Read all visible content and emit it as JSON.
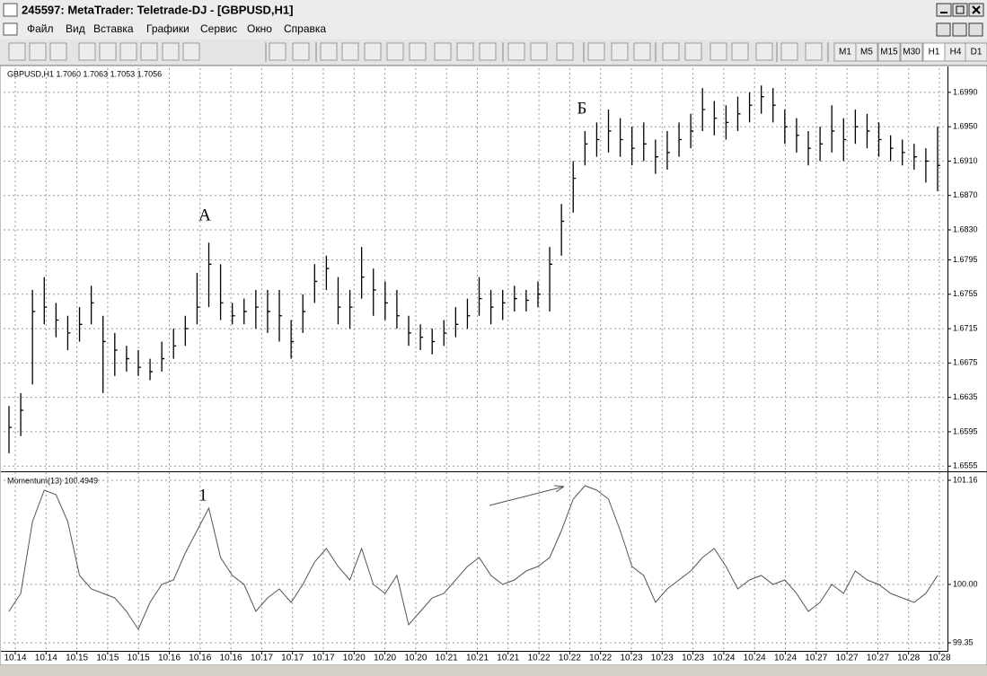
{
  "window": {
    "title": "245597: MetaTrader: Teletrade-DJ - [GBPUSD,H1]"
  },
  "menu": [
    "Файл",
    "Вид",
    "Вставка",
    "Графики",
    "Сервис",
    "Окно",
    "Справка"
  ],
  "timeframes": [
    "M1",
    "M5",
    "M15",
    "M30",
    "H1",
    "H4",
    "D1"
  ],
  "time_axis": {
    "labels": [
      "10.14",
      "10.14",
      "10.15",
      "10.15",
      "10.15",
      "10.16",
      "10.16",
      "10.16",
      "10.17",
      "10.17",
      "10.17",
      "10.20",
      "10.20",
      "10.20",
      "10.21",
      "10.21",
      "10.21",
      "10.22",
      "10.22",
      "10.22",
      "10.23",
      "10.23",
      "10.23",
      "10.24",
      "10.24",
      "10.24",
      "10.27",
      "10.27",
      "10.27",
      "10.28",
      "10.28"
    ]
  },
  "chart_data": [
    {
      "type": "ohlc",
      "title": "GBPUSD,H1  1.7060 1.7063 1.7053 1.7056",
      "series": [
        {
          "name": "high",
          "color": "#000000",
          "values": [
            1.6625,
            1.664,
            1.676,
            1.6775,
            1.6745,
            1.673,
            1.674,
            1.6765,
            1.673,
            1.671,
            1.6695,
            1.669,
            1.668,
            1.67,
            1.6715,
            1.673,
            1.678,
            1.6815,
            1.679,
            1.6745,
            1.675,
            1.676,
            1.676,
            1.676,
            1.6725,
            1.6755,
            1.679,
            1.68,
            1.6775,
            1.676,
            1.681,
            1.6785,
            1.677,
            1.676,
            1.673,
            1.672,
            1.6715,
            1.6725,
            1.674,
            1.675,
            1.6775,
            1.676,
            1.676,
            1.6765,
            1.676,
            1.677,
            1.681,
            1.686,
            1.691,
            1.6945,
            1.6955,
            1.697,
            1.696,
            1.695,
            1.6955,
            1.6935,
            1.6945,
            1.6955,
            1.6965,
            1.6995,
            1.698,
            1.6975,
            1.6985,
            1.699,
            1.6998,
            1.6995,
            1.697,
            1.696,
            1.6945,
            1.695,
            1.6975,
            1.696,
            1.697,
            1.6965,
            1.6955,
            1.694,
            1.6935,
            1.693,
            1.6925,
            1.695
          ]
        },
        {
          "name": "low",
          "color": "#000000",
          "values": [
            1.657,
            1.659,
            1.665,
            1.672,
            1.6705,
            1.669,
            1.67,
            1.672,
            1.664,
            1.666,
            1.6665,
            1.666,
            1.6655,
            1.6665,
            1.668,
            1.6695,
            1.672,
            1.674,
            1.6725,
            1.672,
            1.672,
            1.6715,
            1.671,
            1.67,
            1.668,
            1.671,
            1.6745,
            1.676,
            1.672,
            1.6715,
            1.675,
            1.673,
            1.6725,
            1.6715,
            1.6695,
            1.669,
            1.6685,
            1.6695,
            1.6705,
            1.6715,
            1.673,
            1.672,
            1.6725,
            1.6735,
            1.6735,
            1.674,
            1.6735,
            1.68,
            1.685,
            1.6905,
            1.6915,
            1.692,
            1.6915,
            1.6905,
            1.691,
            1.6895,
            1.69,
            1.6915,
            1.6925,
            1.6945,
            1.694,
            1.6935,
            1.6945,
            1.6955,
            1.6965,
            1.6955,
            1.693,
            1.692,
            1.6905,
            1.691,
            1.692,
            1.691,
            1.693,
            1.6925,
            1.6915,
            1.691,
            1.6905,
            1.69,
            1.6885,
            1.6875
          ]
        },
        {
          "name": "close",
          "color": "#000000",
          "values": [
            1.66,
            1.662,
            1.6735,
            1.674,
            1.6725,
            1.671,
            1.672,
            1.6745,
            1.67,
            1.669,
            1.668,
            1.667,
            1.6665,
            1.668,
            1.6695,
            1.6715,
            1.674,
            1.679,
            1.6745,
            1.673,
            1.6735,
            1.674,
            1.6735,
            1.673,
            1.67,
            1.6735,
            1.677,
            1.6785,
            1.674,
            1.674,
            1.6775,
            1.676,
            1.6745,
            1.673,
            1.671,
            1.6705,
            1.67,
            1.671,
            1.672,
            1.673,
            1.675,
            1.674,
            1.6745,
            1.675,
            1.6748,
            1.6755,
            1.679,
            1.684,
            1.689,
            1.693,
            1.6935,
            1.6945,
            1.6935,
            1.6925,
            1.693,
            1.6915,
            1.692,
            1.6935,
            1.6945,
            1.697,
            1.696,
            1.6955,
            1.6965,
            1.6975,
            1.6985,
            1.6975,
            1.695,
            1.694,
            1.6925,
            1.693,
            1.6945,
            1.6935,
            1.695,
            1.6945,
            1.6935,
            1.6925,
            1.692,
            1.6915,
            1.691,
            1.6905
          ]
        }
      ],
      "ylim": [
        1.655,
        1.7016
      ],
      "yticks": [
        1.6555,
        1.6595,
        1.6635,
        1.6675,
        1.6715,
        1.6755,
        1.6795,
        {
          "value": 1.683,
          "label": "1.6830"
        },
        {
          "value": 1.687,
          "label": "1.6870"
        },
        {
          "value": 1.691,
          "label": "1.6910"
        },
        {
          "value": 1.695,
          "label": "1.6950"
        },
        {
          "value": 1.699,
          "label": "1.6990"
        }
      ],
      "grid": true,
      "annotations": [
        "А",
        "Б"
      ]
    },
    {
      "type": "line",
      "title": "Momentum(13)  100.4949",
      "series": [
        {
          "name": "Momentum(13)",
          "color": "#555555",
          "values": [
            99.7,
            99.9,
            100.7,
            101.05,
            101.0,
            100.7,
            100.1,
            99.95,
            99.9,
            99.85,
            99.7,
            99.5,
            99.8,
            100.0,
            100.05,
            100.35,
            100.6,
            100.85,
            100.3,
            100.1,
            100.0,
            99.7,
            99.85,
            99.95,
            99.8,
            100.0,
            100.25,
            100.4,
            100.2,
            100.05,
            100.4,
            100.0,
            99.9,
            100.1,
            99.55,
            99.7,
            99.85,
            99.9,
            100.05,
            100.2,
            100.3,
            100.1,
            100.0,
            100.05,
            100.15,
            100.2,
            100.3,
            100.6,
            100.95,
            101.1,
            101.05,
            100.95,
            100.6,
            100.2,
            100.1,
            99.8,
            99.95,
            100.05,
            100.15,
            100.3,
            100.4,
            100.2,
            99.95,
            100.05,
            100.1,
            100.0,
            100.05,
            99.9,
            99.7,
            99.8,
            100.0,
            99.9,
            100.15,
            100.05,
            100.0,
            99.9,
            99.85,
            99.8,
            99.9,
            100.1
          ]
        }
      ],
      "ylim": [
        99.29,
        101.23
      ],
      "yticks": [
        99.35,
        {
          "value": 100,
          "label": "100.00"
        },
        101.16
      ],
      "grid": true,
      "annotations": [
        "1"
      ]
    }
  ]
}
